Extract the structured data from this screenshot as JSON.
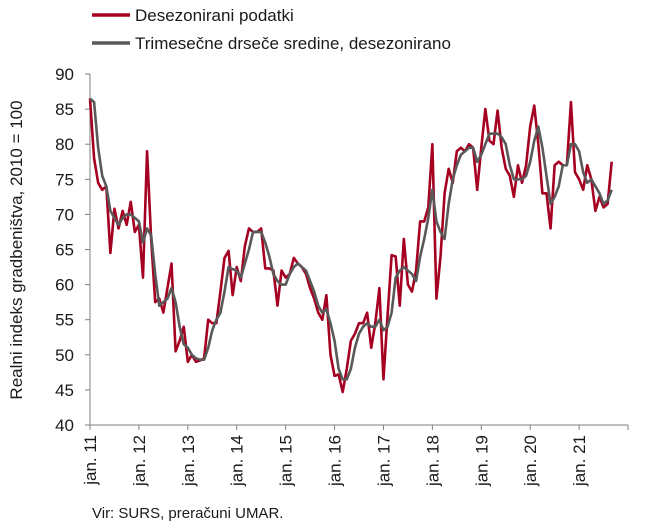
{
  "chart_data": {
    "type": "line",
    "title": "",
    "xlabel": "",
    "ylabel": "Realni indeks gradbeništva, 2010 = 100",
    "ylim": [
      40,
      90
    ],
    "yticks": [
      40,
      45,
      50,
      55,
      60,
      65,
      70,
      75,
      80,
      85,
      90
    ],
    "xtick_labels": [
      "jan. 11",
      "jan. 12",
      "jan. 13",
      "jan. 14",
      "jan. 15",
      "jan. 16",
      "jan. 17",
      "jan. 18",
      "jan. 19",
      "jan. 20",
      "jan. 21"
    ],
    "x_start": "jan. 11",
    "frequency": "monthly",
    "grid": false,
    "legend_position": "top-left",
    "series": [
      {
        "name": "Desezonirani podatki",
        "color": "#a50021",
        "values": [
          86.5,
          78,
          74.5,
          73.5,
          74,
          64.5,
          70.8,
          68,
          70.5,
          68.5,
          71.8,
          67.5,
          68.5,
          61,
          79,
          66.5,
          57.5,
          58,
          56,
          59.5,
          63,
          50.5,
          52,
          54,
          49,
          50,
          49,
          49.2,
          49.5,
          55,
          54.5,
          54.5,
          59,
          63.8,
          64.8,
          58.5,
          62.5,
          60.5,
          65.5,
          68,
          67.5,
          67.5,
          68,
          62.3,
          62.3,
          62,
          57,
          62,
          61,
          61.5,
          63.8,
          63,
          62.5,
          61.5,
          59.5,
          58,
          56,
          55,
          58.5,
          50,
          47,
          47.2,
          44.7,
          48,
          52,
          53,
          54.5,
          54.5,
          56,
          51,
          54.5,
          59.5,
          46.5,
          55.5,
          64.2,
          64,
          57,
          66.5,
          60,
          59,
          62,
          69,
          69,
          71,
          80,
          58,
          64,
          73,
          76.5,
          74.5,
          79,
          79.5,
          79,
          80,
          79.5,
          73.5,
          79.5,
          85,
          80.5,
          80,
          84.8,
          79.5,
          76.5,
          75.5,
          72.5,
          77,
          74.5,
          77,
          82.5,
          85.5,
          80,
          73,
          73,
          68,
          77,
          77.5,
          77,
          77,
          86,
          76,
          75,
          73.5,
          77,
          75,
          70.5,
          72.5,
          71,
          71.5,
          77.5
        ]
      },
      {
        "name": "Trimesečne drseče sredine, desezonirano",
        "color": "#595959",
        "values": [
          86.5,
          86,
          79.5,
          75.5,
          74,
          70.5,
          69.5,
          68.5,
          69.5,
          70,
          70,
          69.5,
          69,
          66,
          68,
          67,
          61.5,
          57,
          57.5,
          58,
          59.5,
          57.5,
          54,
          51.5,
          51,
          50,
          49.5,
          49.3,
          49.3,
          51,
          53.5,
          55,
          56,
          59,
          62.5,
          62.2,
          62,
          61,
          63,
          65,
          67.5,
          67.5,
          67.5,
          66,
          64,
          61.5,
          60.5,
          60,
          60,
          61.5,
          62.5,
          63,
          62.5,
          62,
          60.5,
          59,
          57,
          56,
          56.5,
          54.5,
          52,
          48,
          46.5,
          46.5,
          48,
          51,
          53,
          54,
          54.5,
          54,
          54,
          55,
          53.5,
          54,
          56,
          61,
          62,
          62.5,
          62,
          61.5,
          60.5,
          64,
          66.5,
          69.5,
          73.5,
          69,
          67.5,
          66.5,
          71.5,
          75,
          77,
          78.5,
          79,
          79.5,
          79.5,
          77.5,
          78.5,
          80,
          81.5,
          81.5,
          81.5,
          81,
          80,
          77,
          75,
          75,
          75,
          75.5,
          77.5,
          80.5,
          82.5,
          79.5,
          75.5,
          71.5,
          72.5,
          74,
          77,
          77,
          80,
          80,
          79,
          76,
          74.5,
          75,
          74,
          73,
          71.5,
          72,
          73.5
        ]
      }
    ]
  },
  "source_note": "Vir: SURS, preračuni UMAR."
}
